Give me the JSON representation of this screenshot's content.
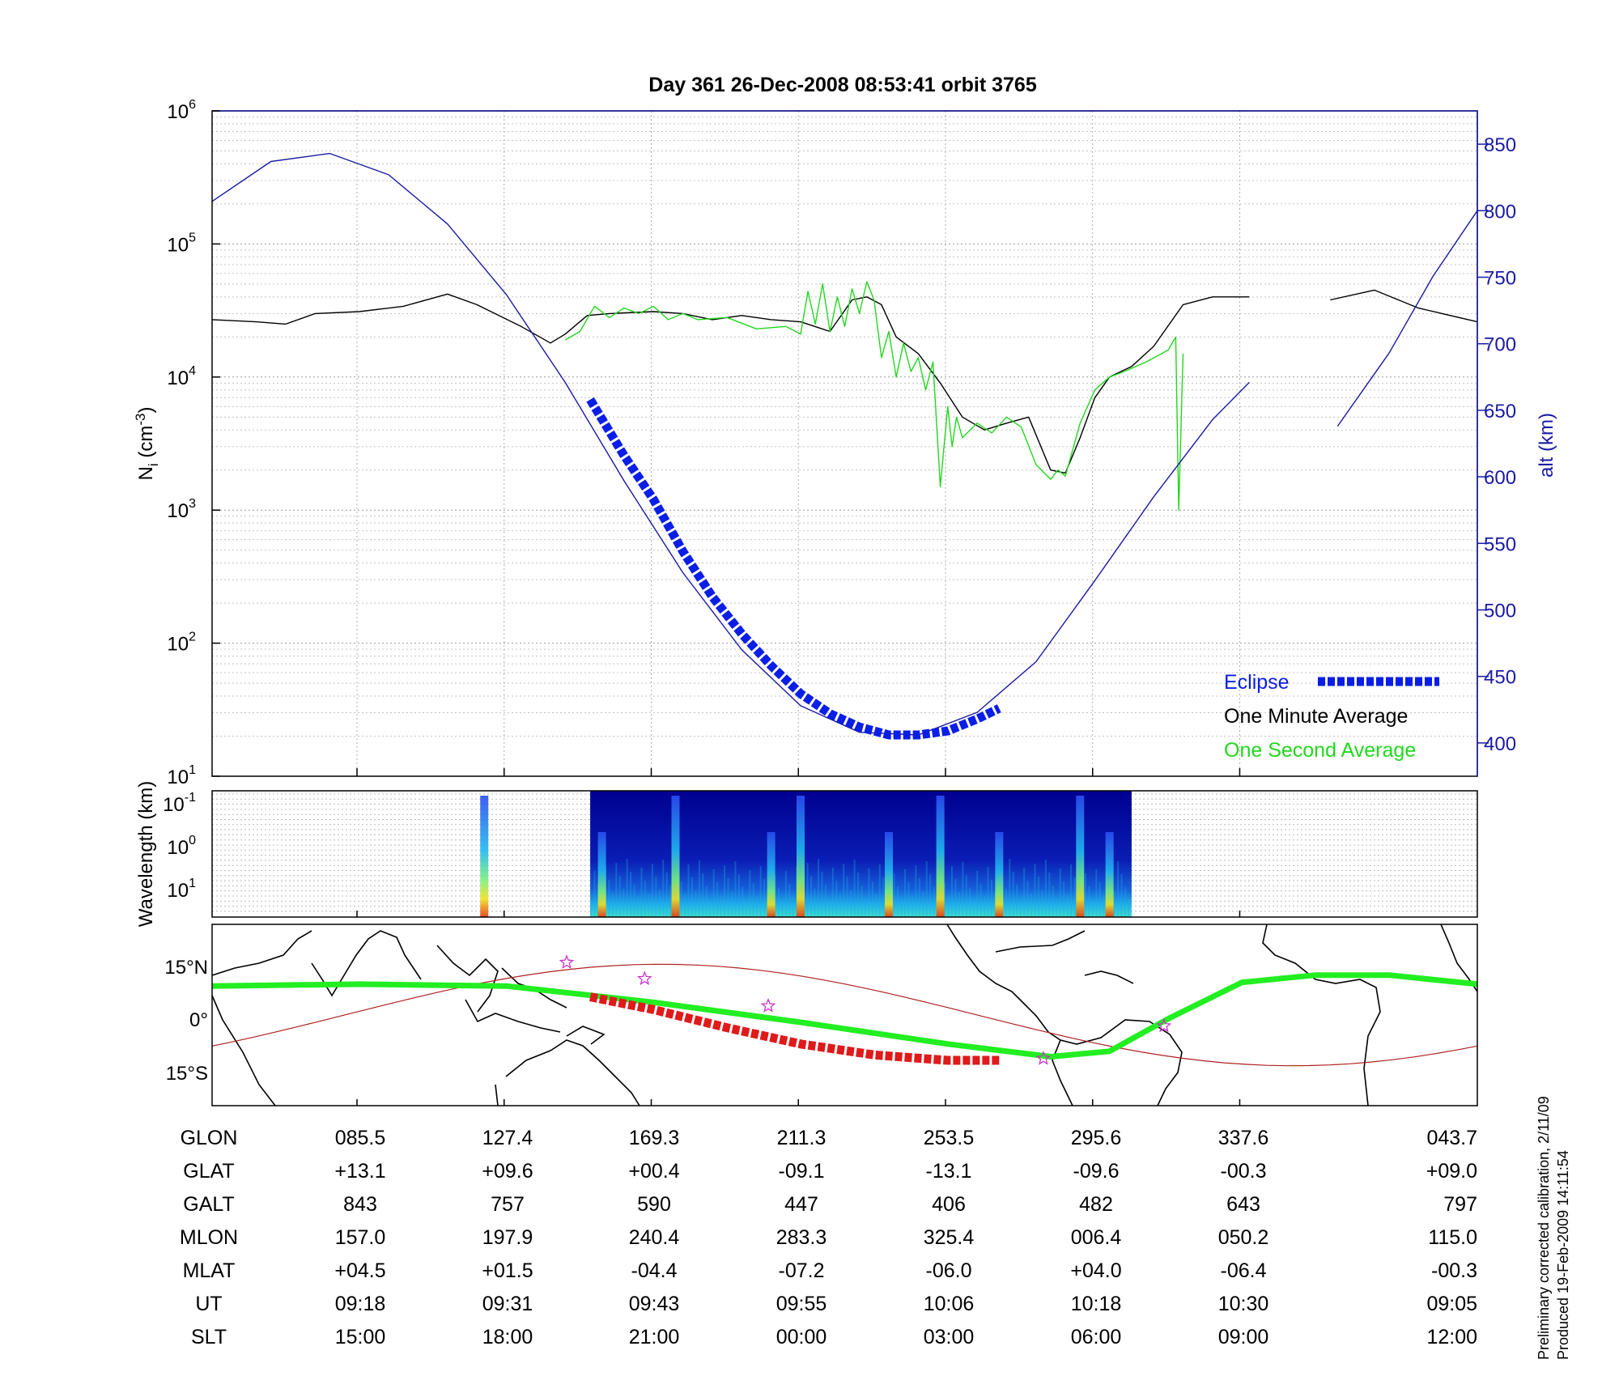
{
  "title": "Day 361  26-Dec-2008 08:53:41   orbit 3765",
  "colors": {
    "altitude": "#1a1aa6",
    "eclipse": "#0a1ee6",
    "one_minute": "#000000",
    "one_second": "#22d81e",
    "track_green": "#22ee22",
    "track_red": "#e01a1a",
    "orbit_line": "#b02020",
    "star": "#cc33cc"
  },
  "chart_data": [
    {
      "type": "line",
      "panel": "density",
      "ylabel": "N",
      "ylabel_sub": "i",
      "ylabel_unit": "(cm",
      "ylabel_unit_sup": "-3",
      "ylabel_unit_close": ")",
      "yscale": "log",
      "ylim": [
        10,
        1000000
      ],
      "yticks": [
        {
          "base": "10",
          "exp": "1"
        },
        {
          "base": "10",
          "exp": "2"
        },
        {
          "base": "10",
          "exp": "3"
        },
        {
          "base": "10",
          "exp": "4"
        },
        {
          "base": "10",
          "exp": "5"
        },
        {
          "base": "10",
          "exp": "6"
        }
      ],
      "ylabel_right": "alt (km)",
      "y2lim": [
        375,
        875
      ],
      "y2ticks": [
        "400",
        "450",
        "500",
        "550",
        "600",
        "650",
        "700",
        "750",
        "800",
        "850"
      ],
      "xlim": [
        0,
        8.6
      ],
      "legend": {
        "placement": "bottom-right",
        "entries": [
          "Eclipse",
          "One Minute Average",
          "One Second Average"
        ]
      },
      "series": [
        {
          "name": "One Minute Average",
          "x": [
            0.0,
            0.3,
            0.5,
            0.7,
            1.0,
            1.3,
            1.6,
            1.8,
            2.1,
            2.3,
            2.4,
            2.55,
            2.7,
            3.0,
            3.2,
            3.4,
            3.6,
            3.8,
            4.0,
            4.2,
            4.35,
            4.45,
            4.55,
            4.65,
            4.8,
            4.95,
            5.1,
            5.25,
            5.4,
            5.55,
            5.7,
            5.8,
            5.9,
            6.0,
            6.1,
            6.25,
            6.4,
            6.6,
            6.8,
            7.0,
            7.05
          ],
          "y": [
            27000,
            26000,
            25000,
            30000,
            31000,
            34000,
            42000,
            35000,
            24000,
            18000,
            21000,
            29000,
            30000,
            31000,
            30000,
            27000,
            29000,
            27000,
            26000,
            22000,
            38000,
            40000,
            35000,
            20000,
            15000,
            9000,
            5000,
            4000,
            4500,
            5000,
            2000,
            1900,
            3500,
            7000,
            10000,
            12000,
            17000,
            35000,
            40000,
            40000,
            40000
          ]
        },
        {
          "name": "One Minute Average",
          "x": [
            7.6,
            7.9,
            8.2,
            8.6
          ],
          "y": [
            38000,
            45000,
            33000,
            26000
          ]
        },
        {
          "name": "One Second Average",
          "x": [
            2.4,
            2.5,
            2.6,
            2.7,
            2.8,
            2.9,
            3.0,
            3.1,
            3.2,
            3.3,
            3.5,
            3.7,
            3.9,
            4.0,
            4.05,
            4.1,
            4.15,
            4.2,
            4.25,
            4.3,
            4.35,
            4.4,
            4.45,
            4.5,
            4.55,
            4.6,
            4.65,
            4.7,
            4.75,
            4.8,
            4.85,
            4.9,
            4.95,
            5.0,
            5.03,
            5.06,
            5.1,
            5.2,
            5.3,
            5.4,
            5.5,
            5.6,
            5.7,
            5.75,
            5.8,
            5.9,
            6.0,
            6.1,
            6.2,
            6.35,
            6.5,
            6.55,
            6.57,
            6.6
          ],
          "y": [
            19000,
            22000,
            34000,
            28000,
            33000,
            30000,
            34000,
            27000,
            30000,
            27000,
            28000,
            23000,
            24000,
            21000,
            44000,
            25000,
            50000,
            22000,
            40000,
            24000,
            46000,
            30000,
            52000,
            38000,
            14000,
            22000,
            10000,
            18000,
            11000,
            14000,
            8000,
            13000,
            1500,
            6000,
            3000,
            5000,
            3500,
            4500,
            3800,
            5000,
            4200,
            2200,
            1700,
            2000,
            1800,
            4500,
            8000,
            10000,
            11000,
            13000,
            16000,
            20000,
            1000,
            15000
          ]
        },
        {
          "name": "alt (km)",
          "axis": "right",
          "x": [
            0.0,
            0.4,
            0.8,
            1.2,
            1.6,
            2.0,
            2.4,
            2.8,
            3.2,
            3.6,
            4.0,
            4.4,
            4.8,
            5.2,
            5.6,
            6.0,
            6.4,
            6.8,
            7.05
          ],
          "y": [
            807,
            837,
            843,
            827,
            790,
            737,
            671,
            597,
            528,
            470,
            428,
            408,
            406,
            423,
            461,
            522,
            585,
            643,
            671
          ]
        },
        {
          "name": "alt (km)",
          "axis": "right",
          "x": [
            7.65,
            8.0,
            8.3,
            8.6
          ],
          "y": [
            638,
            693,
            751,
            800
          ]
        },
        {
          "name": "Eclipse",
          "axis": "right",
          "x": [
            2.57,
            2.8,
            3.0,
            3.2,
            3.4,
            3.6,
            3.8,
            4.0,
            4.2,
            4.4,
            4.6,
            4.8,
            5.0,
            5.2,
            5.35
          ],
          "y": [
            658,
            616,
            583,
            544,
            510,
            482,
            458,
            437,
            422,
            412,
            406,
            406,
            409,
            418,
            426
          ]
        }
      ]
    },
    {
      "type": "heatmap",
      "panel": "spectrogram",
      "ylabel": "Wavelength (km)",
      "yticks": [
        {
          "base": "10",
          "exp": "-1"
        },
        {
          "base": "10",
          "exp": "0"
        },
        {
          "base": "10",
          "exp": "1"
        }
      ],
      "x_extent": [
        2.57,
        6.25
      ],
      "bright_bands_x": [
        1.85,
        2.65,
        3.15,
        3.8,
        4.0,
        4.6,
        4.95,
        5.35,
        5.9,
        6.1
      ]
    },
    {
      "type": "map",
      "panel": "ground_track",
      "yticks": [
        "15°N",
        "0°",
        "15°S"
      ],
      "ylim": [
        -25,
        25
      ],
      "track": {
        "x": [
          0.0,
          1.0,
          2.0,
          3.0,
          4.0,
          5.0,
          5.7,
          6.1,
          6.5,
          7.0,
          7.5,
          8.0,
          8.6
        ],
        "lat": [
          8.0,
          8.5,
          8.0,
          3.5,
          -2.0,
          -8.0,
          -11.5,
          -10.0,
          -1.0,
          9.0,
          11.0,
          11.0,
          8.5
        ]
      },
      "eclipse_track": {
        "x": [
          2.57,
          3.0,
          3.5,
          4.0,
          4.5,
          5.0,
          5.35
        ],
        "lat": [
          5.0,
          1.5,
          -3.5,
          -8.0,
          -11.0,
          -12.5,
          -12.5
        ]
      },
      "stars": [
        {
          "x": 2.41,
          "lat": 14.5
        },
        {
          "x": 2.94,
          "lat": 10.0
        },
        {
          "x": 3.78,
          "lat": 2.5
        },
        {
          "x": 5.65,
          "lat": -12.0
        },
        {
          "x": 6.47,
          "lat": -3.0
        }
      ]
    }
  ],
  "table": {
    "rows": [
      {
        "label": "GLON",
        "values": [
          "085.5",
          "127.4",
          "169.3",
          "211.3",
          "253.5",
          "295.6",
          "337.6",
          "043.7"
        ]
      },
      {
        "label": "GLAT",
        "values": [
          "+13.1",
          "+09.6",
          "+00.4",
          "-09.1",
          "-13.1",
          "-09.6",
          "-00.3",
          "+09.0"
        ]
      },
      {
        "label": "GALT",
        "values": [
          "843",
          "757",
          "590",
          "447",
          "406",
          "482",
          "643",
          "797"
        ]
      },
      {
        "label": "MLON",
        "values": [
          "157.0",
          "197.9",
          "240.4",
          "283.3",
          "325.4",
          "006.4",
          "050.2",
          "115.0"
        ]
      },
      {
        "label": "MLAT",
        "values": [
          "+04.5",
          "+01.5",
          "-04.4",
          "-07.2",
          "-06.0",
          "+04.0",
          "-06.4",
          "-00.3"
        ]
      },
      {
        "label": "UT",
        "values": [
          "09:18",
          "09:31",
          "09:43",
          "09:55",
          "10:06",
          "10:18",
          "10:30",
          "09:05"
        ]
      },
      {
        "label": "SLT",
        "values": [
          "15:00",
          "18:00",
          "21:00",
          "00:00",
          "03:00",
          "06:00",
          "09:00",
          "12:00"
        ]
      }
    ]
  },
  "footnote": [
    "Preliminary corrected calibration, 2/11/09",
    "Produced 19-Feb-2009 14:11:54"
  ]
}
